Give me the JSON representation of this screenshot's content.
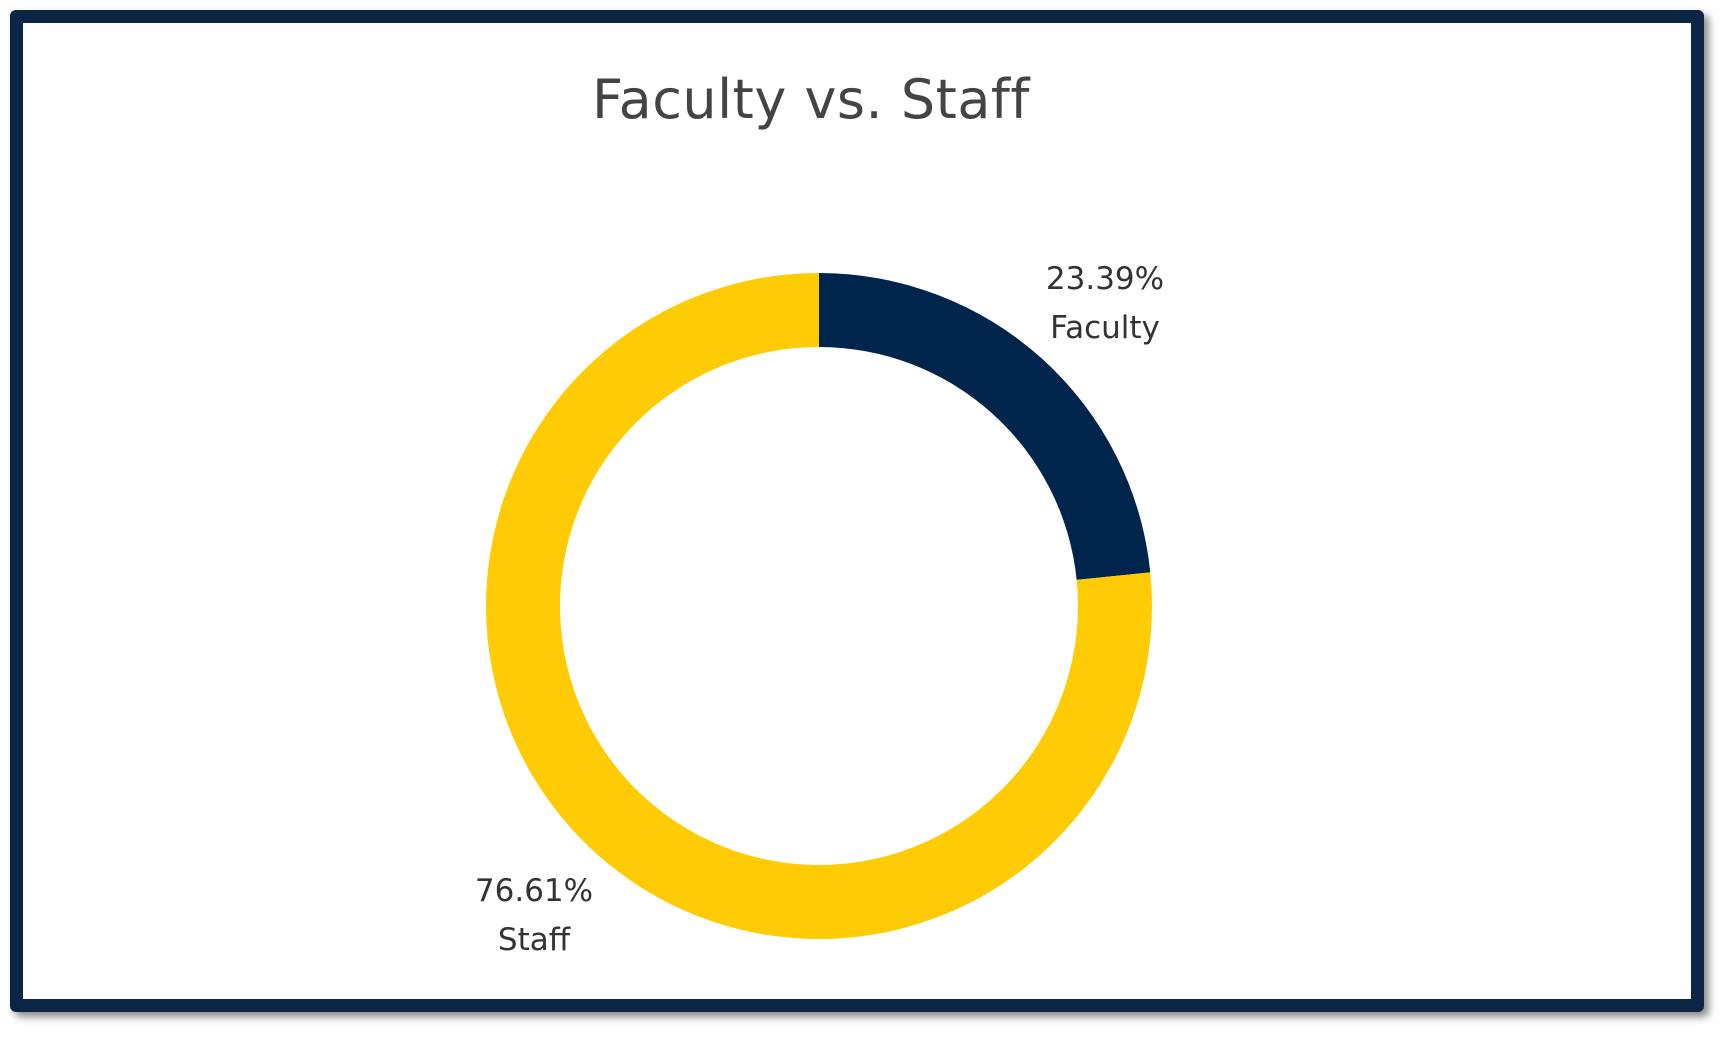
{
  "chart_data": {
    "type": "pie",
    "variant": "donut",
    "title": "Faculty vs. Staff",
    "slices": [
      {
        "label": "Faculty",
        "value": 23.39,
        "value_label": "23.39%",
        "color": "#00254c"
      },
      {
        "label": "Staff",
        "value": 76.61,
        "value_label": "76.61%",
        "color": "#ffcb05"
      }
    ]
  },
  "frame": {
    "border_color": "#0b2546"
  }
}
